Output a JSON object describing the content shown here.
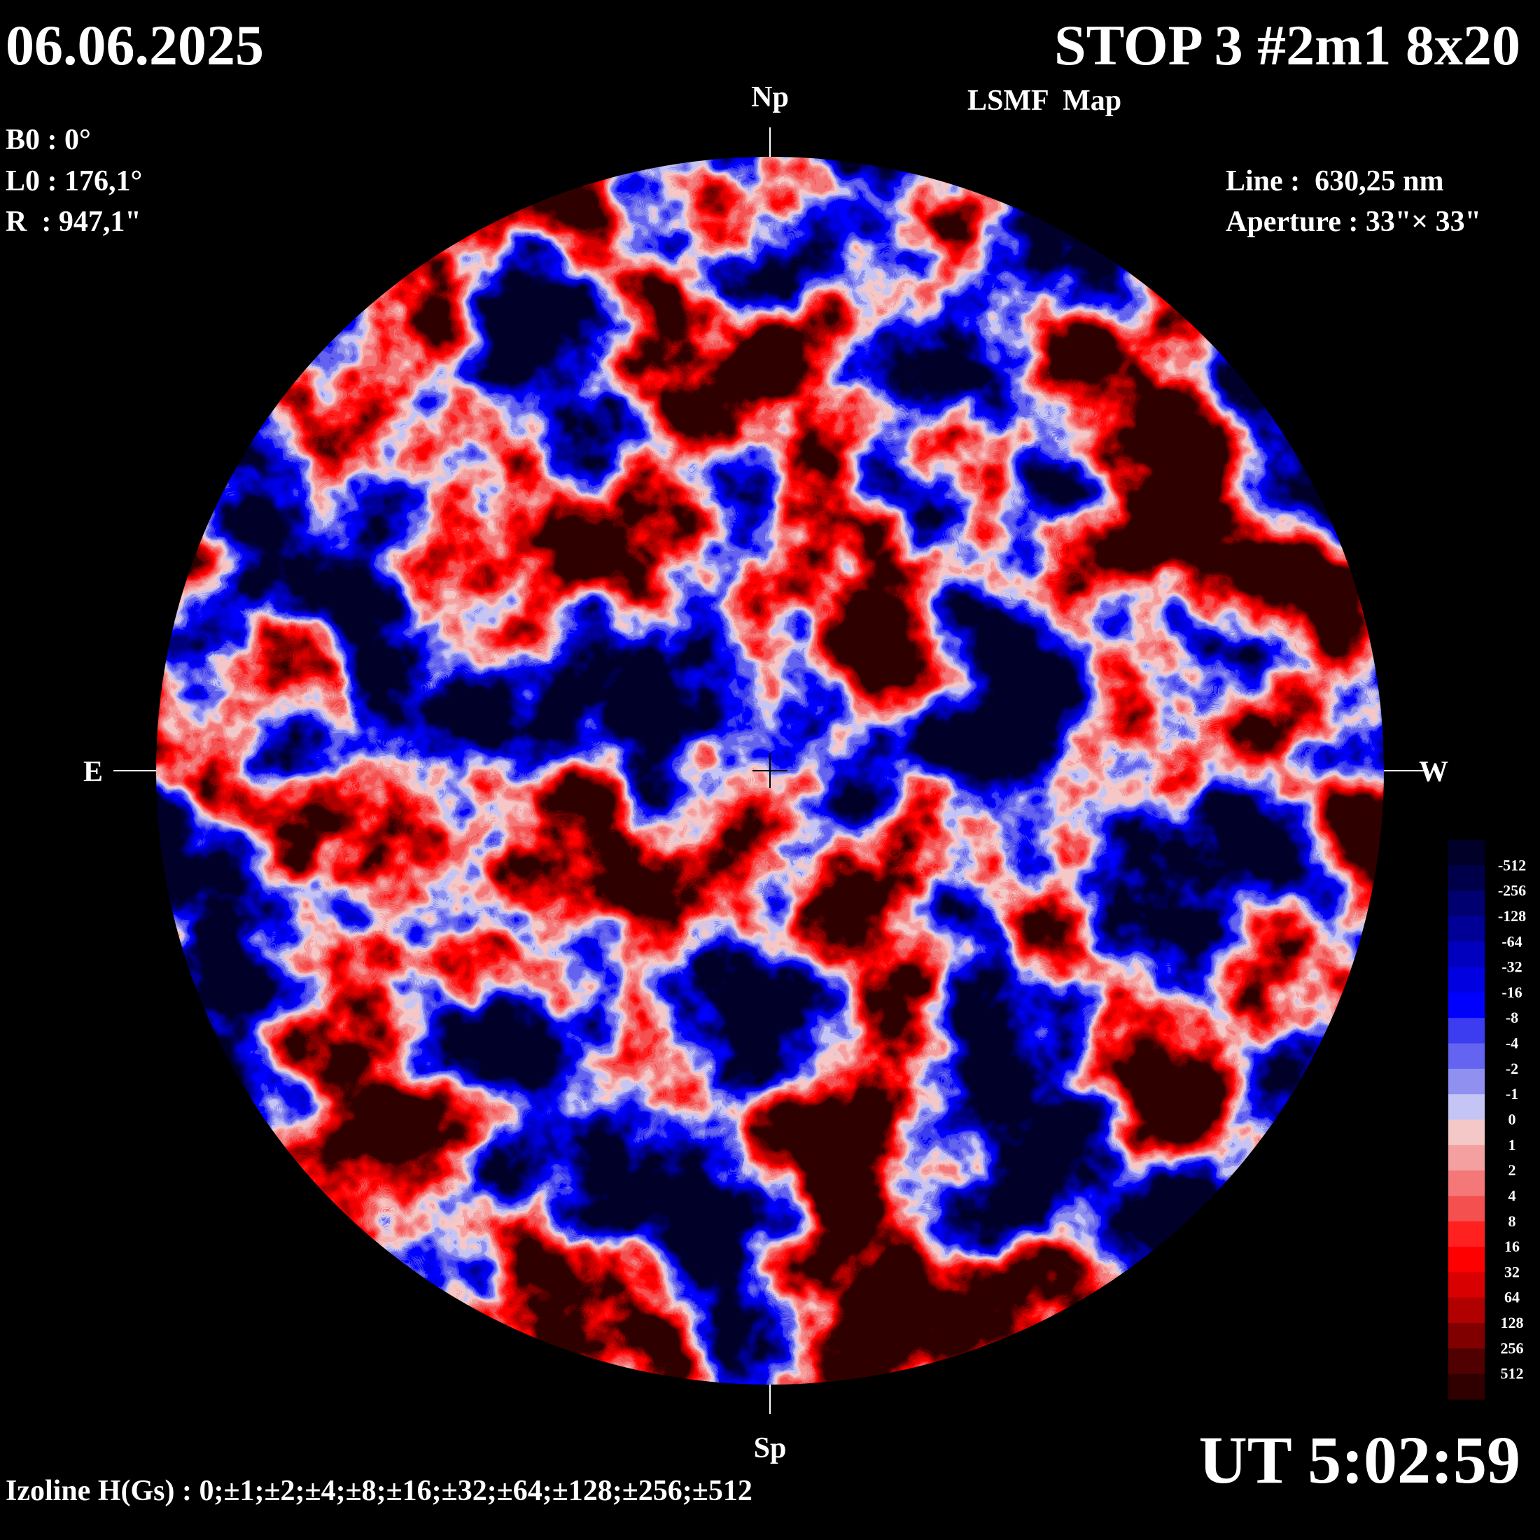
{
  "header": {
    "date": "06.06.2025",
    "title": "STOP 3 #2m1 8x20",
    "subtitle": "LSMF  Map",
    "ut": "UT 5:02:59"
  },
  "params": {
    "b0": "B0 : 0°",
    "l0": "L0 : 176,1°",
    "r": "R  : 947,1\"",
    "line": "Line :  630,25 nm",
    "aperture": "Aperture : 33\"× 33\""
  },
  "directions": {
    "north": "Np",
    "south": "Sp",
    "east": "E",
    "west": "W"
  },
  "colorbar": {
    "labels": [
      "-512",
      "-256",
      "-128",
      "-64",
      "-32",
      "-16",
      "-8",
      "-4",
      "-2",
      "-1",
      "0",
      "1",
      "2",
      "4",
      "8",
      "16",
      "32",
      "64",
      "128",
      "256",
      "512"
    ],
    "colors": [
      "#000028",
      "#00004a",
      "#000070",
      "#000096",
      "#0000be",
      "#0000e0",
      "#0000ff",
      "#3c3cf0",
      "#6464f0",
      "#9090f0",
      "#c4c4f5",
      "#f5c8c8",
      "#f5a0a0",
      "#f57878",
      "#f55050",
      "#ff2020",
      "#ff0000",
      "#d80000",
      "#b00000",
      "#800000",
      "#500000",
      "#300000"
    ]
  },
  "footer": {
    "izoline": "Izoline H(Gs) : 0;±1;±2;±4;±8;±16;±32;±64;±128;±256;±512"
  }
}
